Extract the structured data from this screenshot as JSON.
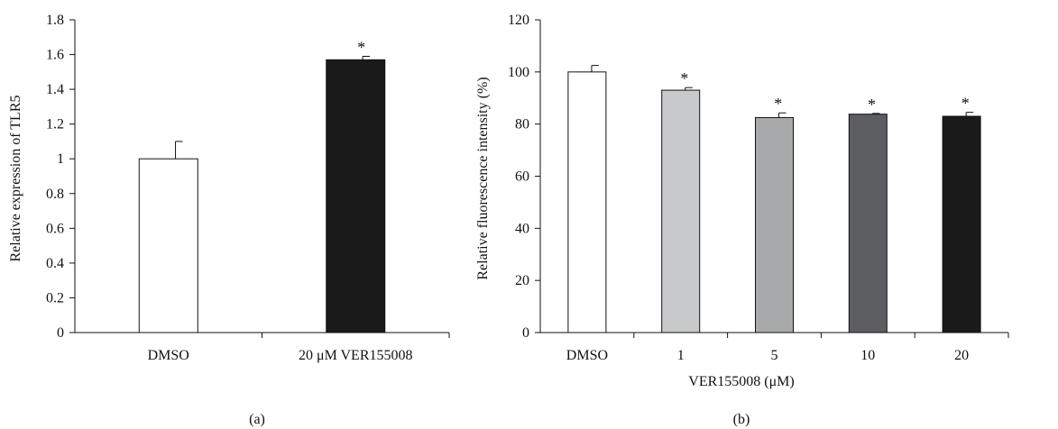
{
  "chart_data": [
    {
      "type": "bar",
      "panel_label": "(a)",
      "ylabel": "Relative expression of TLR5",
      "xlabel": "",
      "categories": [
        "DMSO",
        "20 μM VER155008"
      ],
      "values": [
        1.0,
        1.57
      ],
      "errors": [
        0.1,
        0.02
      ],
      "significance": [
        "",
        "*"
      ],
      "colors": [
        "#ffffff",
        "#1a1a1a"
      ],
      "ylim": [
        0,
        1.8
      ],
      "yticks": [
        "0",
        "0.2",
        "0.4",
        "0.6",
        "0.8",
        "1",
        "1.2",
        "1.4",
        "1.6",
        "1.8"
      ],
      "grid": false,
      "legend": "none"
    },
    {
      "type": "bar",
      "panel_label": "(b)",
      "ylabel": "Relative fluorescence intensity (%)",
      "xlabel": "VER155008 (μM)",
      "categories": [
        "DMSO",
        "1",
        "5",
        "10",
        "20"
      ],
      "values": [
        100,
        93,
        82.5,
        83.8,
        83
      ],
      "errors": [
        2.5,
        1.0,
        1.8,
        0.3,
        1.5
      ],
      "significance": [
        "",
        "*",
        "*",
        "*",
        "*"
      ],
      "colors": [
        "#ffffff",
        "#c8c9cb",
        "#a8a9ab",
        "#5c5d60",
        "#1a1a1a"
      ],
      "ylim": [
        0,
        120
      ],
      "yticks": [
        "0",
        "20",
        "40",
        "60",
        "80",
        "100",
        "120"
      ],
      "grid": false,
      "legend": "none"
    }
  ]
}
